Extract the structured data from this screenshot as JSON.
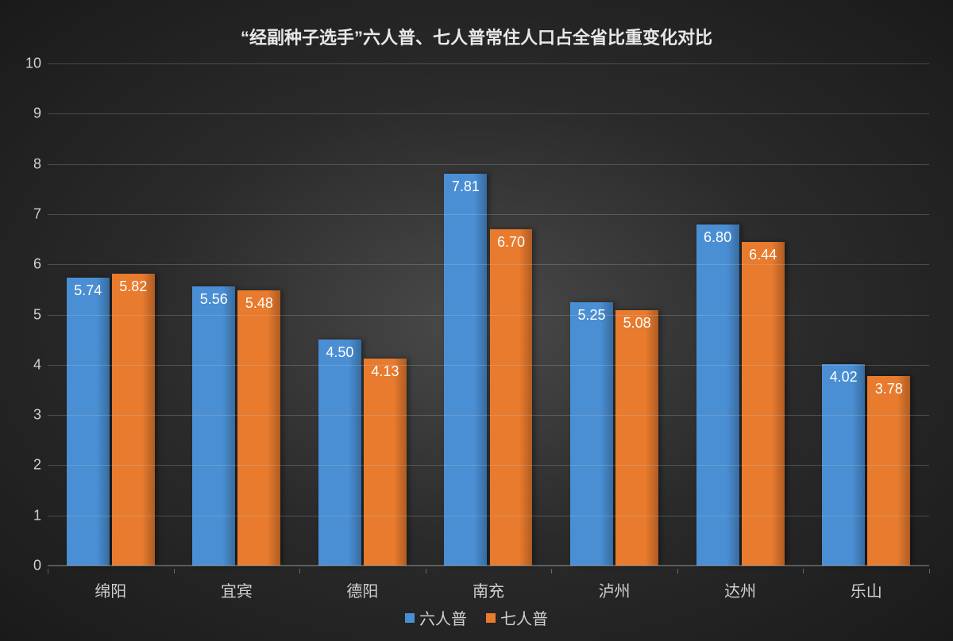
{
  "chart": {
    "type": "bar",
    "title": "“经副种子选手”六人普、七人普常住人口占全省比重变化对比",
    "title_fontsize": 22,
    "title_color": "#e8e8e8",
    "background": "radial-dark",
    "background_colors": [
      "#4a4a4a",
      "#2a2a2a",
      "#1a1a1a"
    ],
    "categories": [
      "绵阳",
      "宜宾",
      "德阳",
      "南充",
      "泸州",
      "达州",
      "乐山"
    ],
    "series": [
      {
        "name": "六人普",
        "color": "#4a8fd4",
        "values": [
          5.74,
          5.56,
          4.5,
          7.81,
          5.25,
          6.8,
          4.02
        ],
        "label_color": "#ffffff"
      },
      {
        "name": "七人普",
        "color": "#e87b2e",
        "values": [
          5.82,
          5.48,
          4.13,
          6.7,
          5.08,
          6.44,
          3.78
        ],
        "label_color": "#ffffff"
      }
    ],
    "y_axis": {
      "min": 0,
      "max": 10,
      "tick_step": 1,
      "ticks": [
        0,
        1,
        2,
        3,
        4,
        5,
        6,
        7,
        8,
        9,
        10
      ],
      "label_color": "#d0d0d0",
      "label_fontsize": 18,
      "grid_color": "rgba(200,200,200,0.25)"
    },
    "x_axis": {
      "label_color": "#d0d0d0",
      "label_fontsize": 20
    },
    "bar_width_ratio": 0.34,
    "bar_gap_ratio": 0.02,
    "group_gap_ratio": 0.28,
    "data_label_fontsize": 18,
    "legend": {
      "position": "bottom-center",
      "fontsize": 20,
      "swatch_size": 12,
      "text_color": "#d0d0d0"
    }
  }
}
